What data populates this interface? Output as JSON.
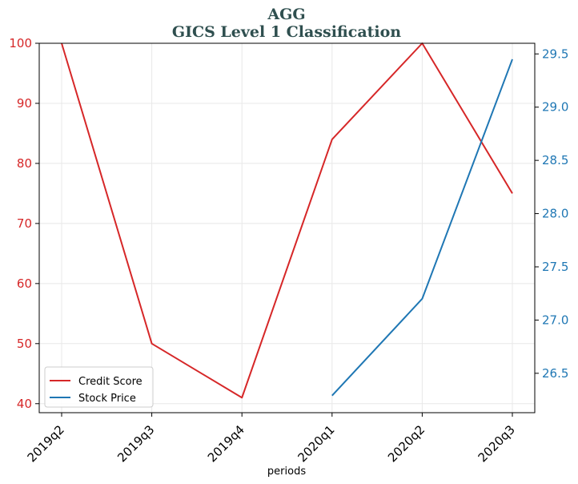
{
  "chart_data": {
    "type": "line",
    "title_line1": "AGG",
    "title_line2": "GICS Level 1 Classification",
    "xlabel": "periods",
    "categories": [
      "2019q2",
      "2019q3",
      "2019q4",
      "2020q1",
      "2020q2",
      "2020q3"
    ],
    "y_left": {
      "ylim": [
        38.5,
        100
      ],
      "ticks": [
        40,
        50,
        60,
        70,
        80,
        90,
        100
      ],
      "color": "#d62728"
    },
    "y_right": {
      "ylim": [
        26.13,
        29.6
      ],
      "ticks": [
        "26.5",
        "27.0",
        "27.5",
        "28.0",
        "28.5",
        "29.0",
        "29.5"
      ],
      "color": "#1f77b4"
    },
    "series": [
      {
        "name": "Credit Score",
        "axis": "left",
        "color": "#d62728",
        "values": [
          100,
          50,
          41,
          84,
          100,
          75
        ]
      },
      {
        "name": "Stock Price",
        "axis": "right",
        "color": "#1f77b4",
        "values": [
          null,
          null,
          null,
          26.29,
          27.2,
          29.45
        ]
      }
    ],
    "grid": true,
    "legend_position": "lower-left"
  }
}
